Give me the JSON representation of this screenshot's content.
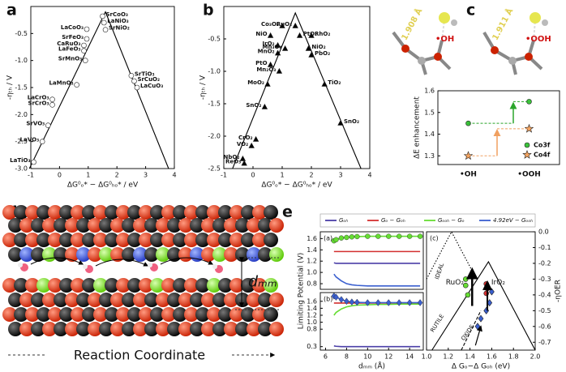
{
  "panel_labels": [
    "a",
    "b",
    "c",
    "d",
    "e"
  ],
  "chart_data": [
    {
      "type": "scatter",
      "xlabel": "ΔG⁰ₒ* − ΔG⁰ₕₒ* / eV",
      "ylabel": "-ηₜₕ / V",
      "xlim": [
        -1,
        4
      ],
      "xticks": [
        -1,
        0,
        1,
        2,
        3,
        4
      ],
      "ylim": [
        -3.0,
        0
      ],
      "yticks": [
        -0.5,
        {
          "value": -1,
          "label": "-1.0"
        },
        -1.5,
        {
          "value": -2,
          "label": "-2.0"
        },
        -2.5,
        {
          "value": -3,
          "label": "-3.0"
        }
      ],
      "series": [
        {
          "mode": "line",
          "color": "#000000",
          "x": [
            -1.05,
            1.6,
            3.8
          ],
          "values": [
            -3.0,
            -0.1,
            -3.0
          ]
        },
        {
          "mode": "markers",
          "marker": "circle",
          "color": "#ffffff",
          "x": [
            1.5,
            1.55,
            1.6,
            0.95,
            0.95,
            0.85,
            0.85,
            0.9,
            0.6,
            2.5,
            2.6,
            2.7,
            -0.25,
            -0.25,
            -0.4,
            -0.6,
            -0.9
          ],
          "values": [
            -0.18,
            -0.3,
            -0.43,
            -0.42,
            -0.6,
            -0.72,
            -0.82,
            -1.0,
            -1.45,
            -1.28,
            -1.38,
            -1.5,
            -1.72,
            -1.82,
            -2.2,
            -2.5,
            -2.88
          ],
          "labels": [
            "SrCoO₃",
            "LaNiO₃",
            "SrNiO₂",
            "LaCoO₃",
            "SrFeO₃",
            "CaRuO₃",
            "LaFeO₃",
            "SrMnO₃",
            "LaMnO₃",
            "SrTiO₃",
            "SrCuO₂",
            "LaCuO₃",
            "LaCrO₃",
            "SrCrO₃",
            "SrVO₃",
            "LaVO₃",
            "LaTiO₃"
          ]
        }
      ]
    },
    {
      "type": "scatter",
      "xlabel": "ΔG⁰ₒ* − ΔG⁰ₕₒ* / eV",
      "ylabel": "-ηₜₕ / V",
      "xlim": [
        -1,
        4
      ],
      "xticks": [
        -1,
        0,
        1,
        2,
        3,
        4
      ],
      "ylim": [
        -2.5,
        0
      ],
      "yticks": [
        -0.5,
        {
          "value": -1,
          "label": "-1.0"
        },
        -1.5,
        {
          "value": -2,
          "label": "-2.0"
        },
        -2.5
      ],
      "series": [
        {
          "mode": "line",
          "color": "#000000",
          "x": [
            -0.7,
            1.45,
            3.7
          ],
          "values": [
            -2.5,
            -0.1,
            -2.5
          ]
        },
        {
          "mode": "markers",
          "marker": "triangle",
          "color": "#000000",
          "x": [
            1.0,
            1.45,
            0.6,
            1.6,
            2.0,
            0.85,
            1.1,
            1.9,
            2.0,
            0.85,
            0.6,
            0.9,
            0.5,
            2.45,
            0.4,
            3.0,
            0.1,
            -0.05,
            -0.35,
            -0.3
          ],
          "values": [
            -0.3,
            -0.3,
            -0.45,
            -0.45,
            -0.45,
            -0.6,
            -0.65,
            -0.65,
            -0.75,
            -0.72,
            -0.9,
            -1.0,
            -1.2,
            -1.2,
            -1.55,
            -1.8,
            -2.05,
            -2.15,
            -2.35,
            -2.42
          ],
          "labels": [
            "Co₃O₄",
            "RuO₂",
            "NiO",
            "PtO₂",
            "RhO₂",
            "IrO₂",
            "Mn₃O₄",
            "NiO₂",
            "PbO₂",
            "MnO₂",
            "PtO",
            "Mn₂O₃",
            "MoO₂",
            "TiO₂",
            "SnO₂",
            "SnO₂",
            "CrO₂",
            "VO₂",
            "NbO₂",
            "ReO₃"
          ]
        }
      ]
    },
    {
      "type": "scatter",
      "ylabel": "ΔE enhancement",
      "categories": [
        "•OH",
        "•OOH"
      ],
      "ylim": [
        1.26,
        1.6
      ],
      "yticks": [
        1.3,
        1.4,
        1.5,
        1.6
      ],
      "legend": "bottom-right",
      "series": [
        {
          "name": "Co3f",
          "marker": "circle",
          "color": "#3cc43c",
          "values": [
            1.45,
            1.55
          ]
        },
        {
          "name": "Co4f",
          "marker": "star",
          "color": "#f4a460",
          "values": [
            1.3,
            1.425
          ]
        }
      ]
    },
    {
      "type": "line",
      "panel_label": "(a)",
      "ylabel": "Limiting Potential (V)",
      "legend": "top",
      "x": [
        6.8,
        7,
        7.5,
        8,
        8.5,
        9,
        10,
        11,
        12,
        13,
        14,
        15
      ],
      "xlim": [
        5.5,
        15.3
      ],
      "ylim": [
        0.7,
        1.72
      ],
      "yticks": [
        0.8,
        {
          "value": 1,
          "label": "1.0"
        },
        1.2,
        1.4,
        1.6
      ],
      "series": [
        {
          "name": "Gₒₕ",
          "color": "#4b3fa8",
          "values": [
            1.17,
            1.16,
            1.16,
            1.16,
            1.16,
            1.16,
            1.16,
            1.16,
            1.16,
            1.16,
            1.16,
            1.16
          ]
        },
        {
          "name": "Gₒ − Gₒₕ",
          "color": "#d32f2f",
          "values": [
            1.37,
            1.37,
            1.37,
            1.37,
            1.37,
            1.37,
            1.37,
            1.37,
            1.37,
            1.37,
            1.37,
            1.37
          ]
        },
        {
          "name": "Gₒₒₕ − Gₒ",
          "color": "#66dd33",
          "marker": "circle",
          "values": [
            1.56,
            1.58,
            1.61,
            1.62,
            1.63,
            1.635,
            1.64,
            1.64,
            1.64,
            1.64,
            1.64,
            1.64
          ]
        },
        {
          "name": "4.92eV − Gₒₒₕ",
          "color": "#3a5fcf",
          "values": [
            0.97,
            0.92,
            0.85,
            0.8,
            0.78,
            0.77,
            0.76,
            0.76,
            0.76,
            0.76,
            0.76,
            0.76
          ]
        }
      ]
    },
    {
      "type": "line",
      "panel_label": "(b)",
      "xlabel": "dₘₘ (Å)",
      "x": [
        6.8,
        7,
        7.5,
        8,
        8.5,
        9,
        10,
        11,
        12,
        13,
        14,
        15
      ],
      "xlim": [
        5.5,
        15.3
      ],
      "xticks": [
        6,
        8,
        10,
        12,
        14
      ],
      "ylim": [
        0.2,
        1.85
      ],
      "yticks": [
        0.3,
        0.8,
        {
          "value": 1,
          "label": "1.0"
        },
        1.2,
        1.4,
        1.6
      ],
      "series": [
        {
          "color": "#4b3fa8",
          "values": [
            0.32,
            0.31,
            0.3,
            0.3,
            0.3,
            0.3,
            0.3,
            0.3,
            0.3,
            0.3,
            0.3,
            0.3
          ]
        },
        {
          "color": "#d32f2f",
          "values": [
            1.55,
            1.55,
            1.55,
            1.55,
            1.55,
            1.55,
            1.55,
            1.55,
            1.55,
            1.55,
            1.55,
            1.55
          ]
        },
        {
          "color": "#66dd33",
          "values": [
            1.2,
            1.28,
            1.38,
            1.44,
            1.47,
            1.49,
            1.5,
            1.51,
            1.51,
            1.52,
            1.52,
            1.52
          ]
        },
        {
          "color": "#3a5fcf",
          "marker": "diamond",
          "values": [
            1.75,
            1.72,
            1.65,
            1.6,
            1.58,
            1.57,
            1.56,
            1.56,
            1.56,
            1.56,
            1.56,
            1.56
          ]
        }
      ]
    },
    {
      "type": "scatter",
      "panel_label": "(c)",
      "xlabel": "Δ Gₒ−Δ Gₒₕ (eV)",
      "ylabel": "-ηOER",
      "y_axis_side": "right",
      "xlim": [
        1.0,
        2.0
      ],
      "xticks": [
        {
          "value": 1,
          "label": "1.0"
        },
        1.2,
        1.4,
        1.6,
        1.8,
        {
          "value": 2,
          "label": "2.0"
        }
      ],
      "ylim": [
        -0.75,
        0.0
      ],
      "yticks": [
        {
          "value": 0,
          "label": "0.0"
        },
        -0.1,
        -0.2,
        -0.3,
        -0.4,
        -0.5,
        -0.6,
        -0.7
      ],
      "annotations": [
        "IDEAL",
        "RUTILE",
        "OXIDE",
        "RuO₂",
        "IrO₂"
      ],
      "series": [
        {
          "mode": "line",
          "dash": "dotted",
          "color": "#000000",
          "x": [
            1.0,
            1.23,
            1.46
          ],
          "values": [
            -0.3,
            0.0,
            -0.3
          ]
        },
        {
          "mode": "line",
          "color": "#000000",
          "x": [
            1.05,
            1.57,
            2.0
          ],
          "values": [
            -0.75,
            -0.19,
            -0.75
          ]
        },
        {
          "mode": "line",
          "dash": "dashed",
          "color": "#000000",
          "x": [
            1.32,
            1.5
          ],
          "values": [
            -0.75,
            -0.5
          ]
        },
        {
          "mode": "markers",
          "marker": "circle",
          "color": "#66dd33",
          "x": [
            1.36,
            1.36,
            1.38
          ],
          "values": [
            -0.3,
            -0.34,
            -0.4
          ]
        },
        {
          "mode": "markers",
          "marker": "circle",
          "color": "#d32f2f",
          "x": [
            1.55,
            1.56,
            1.55
          ],
          "values": [
            -0.33,
            -0.36,
            -0.39
          ]
        },
        {
          "mode": "markers",
          "marker": "diamond",
          "color": "#3a5fcf",
          "x": [
            1.6,
            1.58,
            1.55,
            1.5,
            1.47
          ],
          "values": [
            -0.38,
            -0.45,
            -0.5,
            -0.55,
            -0.6
          ]
        }
      ]
    }
  ],
  "illustration_c": {
    "bond_lengths": [
      "1.908 Å",
      "1.911 Å"
    ],
    "adsorbates": [
      "•OH",
      "•OOH"
    ]
  },
  "illustration_d": {
    "distance_label": "dₘₘ",
    "axis_label": "Reaction Coordinate"
  }
}
